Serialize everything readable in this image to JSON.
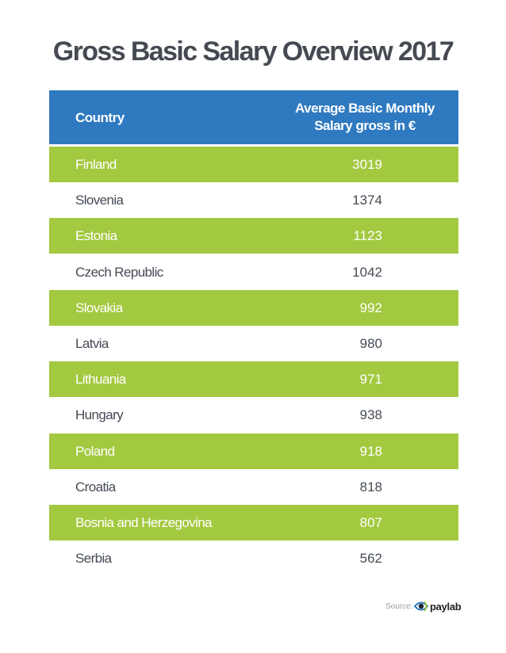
{
  "title": "Gross Basic Salary Overview 2017",
  "table": {
    "header": {
      "country": "Country",
      "value_line1": "Average Basic Monthly",
      "value_line2": "Salary gross in €"
    }
  },
  "chart_data": {
    "type": "table",
    "title": "Gross Basic Salary Overview 2017",
    "columns": [
      "Country",
      "Average Basic Monthly Salary gross in €"
    ],
    "rows": [
      {
        "country": "Finland",
        "value": "3019"
      },
      {
        "country": "Slovenia",
        "value": "1374"
      },
      {
        "country": "Estonia",
        "value": "1123"
      },
      {
        "country": "Czech Republic",
        "value": "1042"
      },
      {
        "country": "Slovakia",
        "value": "992"
      },
      {
        "country": "Latvia",
        "value": "980"
      },
      {
        "country": "Lithuania",
        "value": "971"
      },
      {
        "country": "Hungary",
        "value": "938"
      },
      {
        "country": "Poland",
        "value": "918"
      },
      {
        "country": "Croatia",
        "value": "818"
      },
      {
        "country": "Bosnia and Herzegovina",
        "value": "807"
      },
      {
        "country": "Serbia",
        "value": "562"
      }
    ],
    "row_colors": [
      "#a3c940",
      "#ffffff"
    ],
    "header_color": "#2f79c0"
  },
  "footer": {
    "source_label": "Source:",
    "brand": "paylab",
    "logo_icon": "paylab-eye-logo-icon"
  }
}
